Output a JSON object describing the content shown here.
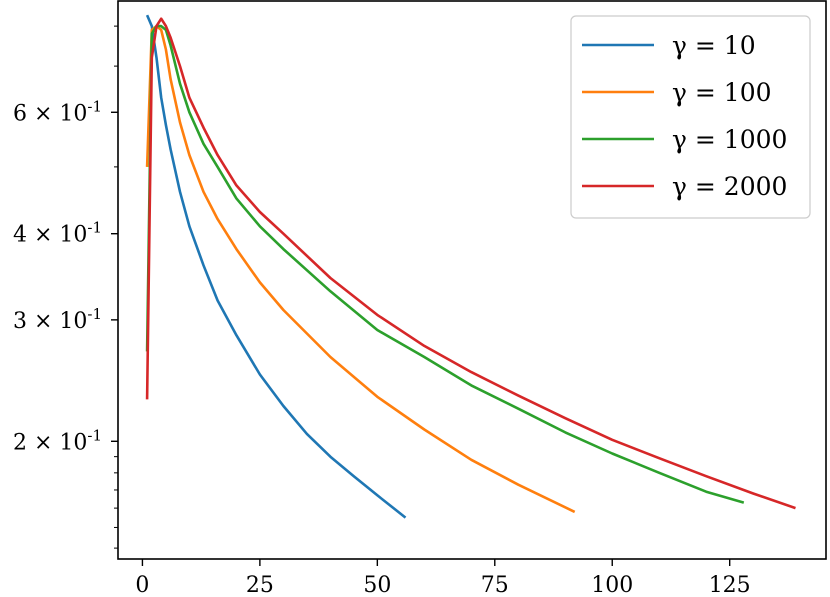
{
  "chart_data": {
    "type": "line",
    "title": "",
    "xlabel": "",
    "ylabel": "",
    "yscale": "log",
    "xlim": [
      -5.2,
      145.5
    ],
    "ylim": [
      0.135,
      0.87
    ],
    "x_ticks": [
      0,
      25,
      50,
      75,
      100,
      125
    ],
    "x_tick_labels": [
      "0",
      "25",
      "50",
      "75",
      "100",
      "125"
    ],
    "y_ticks": [
      0.2,
      0.3,
      0.4,
      0.6
    ],
    "y_tick_labels": [
      "2 × 10-1",
      "3 × 10-1",
      "4 × 10-1",
      "6 × 10-1"
    ],
    "grid": false,
    "legend": "top-right",
    "series": [
      {
        "name": "γ = 10",
        "color": "#1f77b4",
        "x": [
          1,
          2,
          3,
          4,
          5,
          6,
          8,
          10,
          13,
          16,
          20,
          25,
          30,
          35,
          40,
          45,
          50,
          56
        ],
        "y": [
          0.83,
          0.8,
          0.72,
          0.63,
          0.575,
          0.53,
          0.46,
          0.41,
          0.36,
          0.32,
          0.285,
          0.25,
          0.225,
          0.205,
          0.19,
          0.178,
          0.167,
          0.155
        ]
      },
      {
        "name": "γ = 100",
        "color": "#ff7f0e",
        "x": [
          1,
          2,
          3,
          4,
          5,
          6,
          8,
          10,
          13,
          16,
          20,
          25,
          30,
          40,
          50,
          60,
          70,
          80,
          92
        ],
        "y": [
          0.5,
          0.79,
          0.8,
          0.79,
          0.74,
          0.67,
          0.58,
          0.52,
          0.46,
          0.42,
          0.38,
          0.34,
          0.31,
          0.265,
          0.232,
          0.208,
          0.188,
          0.173,
          0.158
        ]
      },
      {
        "name": "γ = 1000",
        "color": "#2ca02c",
        "x": [
          1,
          2,
          3,
          4,
          5,
          6,
          8,
          10,
          13,
          16,
          20,
          25,
          30,
          40,
          50,
          60,
          70,
          80,
          90,
          100,
          110,
          120,
          128
        ],
        "y": [
          0.27,
          0.78,
          0.8,
          0.8,
          0.79,
          0.75,
          0.66,
          0.6,
          0.54,
          0.5,
          0.45,
          0.41,
          0.38,
          0.33,
          0.29,
          0.265,
          0.241,
          0.223,
          0.206,
          0.192,
          0.18,
          0.169,
          0.163
        ]
      },
      {
        "name": "γ = 2000",
        "color": "#d62728",
        "x": [
          1,
          2,
          3,
          4,
          5,
          6,
          8,
          10,
          13,
          16,
          20,
          25,
          30,
          40,
          50,
          60,
          70,
          80,
          90,
          100,
          110,
          120,
          130,
          139
        ],
        "y": [
          0.23,
          0.72,
          0.8,
          0.82,
          0.8,
          0.77,
          0.7,
          0.63,
          0.57,
          0.52,
          0.47,
          0.43,
          0.4,
          0.345,
          0.305,
          0.275,
          0.252,
          0.233,
          0.216,
          0.201,
          0.189,
          0.178,
          0.168,
          0.16
        ]
      }
    ]
  }
}
